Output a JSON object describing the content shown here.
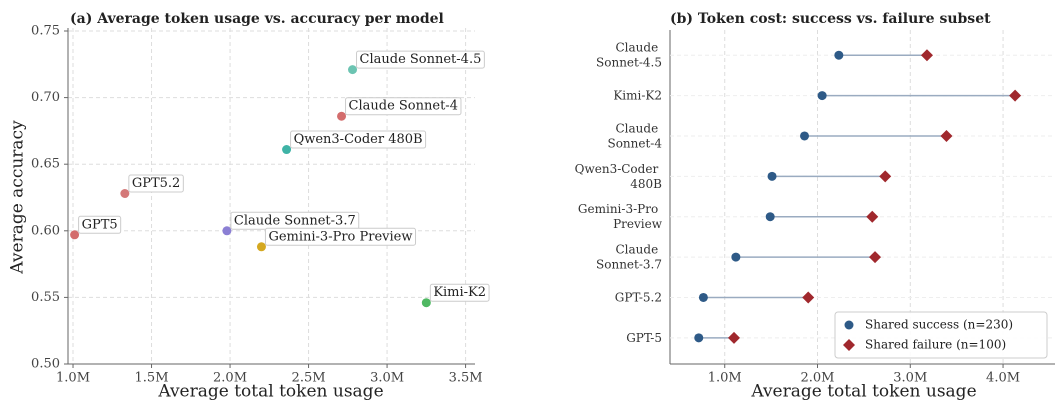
{
  "chart_data": [
    {
      "type": "scatter",
      "title": "(a) Average token usage vs. accuracy per model",
      "x_label": "Average total token usage",
      "y_label": "Average accuracy",
      "labels": [
        "GPT5",
        "GPT5.2",
        "Claude Sonnet-3.7",
        "Gemini-3-Pro Preview",
        "Qwen3-Coder 480B",
        "Claude Sonnet-4",
        "Claude Sonnet-4.5",
        "Kimi-K2"
      ],
      "x": [
        1010000,
        1330000,
        1980000,
        2200000,
        2360000,
        2710000,
        2780000,
        3250000
      ],
      "values": [
        0.597,
        0.628,
        0.6,
        0.588,
        0.661,
        0.686,
        0.721,
        0.546
      ],
      "colors": [
        "#d36d6d",
        "#d47878",
        "#8b7fd4",
        "#d4a820",
        "#3fb3a6",
        "#d36d6d",
        "#6cc4b2",
        "#4fb862"
      ],
      "xlim": [
        968000,
        3560000
      ],
      "ylim": [
        0.5,
        0.75
      ],
      "xticks": [
        {
          "value": 1000000,
          "label": "1.0M"
        },
        {
          "value": 1500000,
          "label": "1.5M"
        },
        {
          "value": 2000000,
          "label": "2.0M"
        },
        {
          "value": 2500000,
          "label": "2.5M"
        },
        {
          "value": 3000000,
          "label": "3.0M"
        },
        {
          "value": 3500000,
          "label": "3.5M"
        }
      ],
      "yticks": [
        {
          "value": 0.5,
          "label": "0.50"
        },
        0.55,
        {
          "value": 0.6,
          "label": "0.60"
        },
        0.65,
        {
          "value": 0.7,
          "label": "0.70"
        },
        0.75
      ],
      "grid": true
    },
    {
      "type": "dumbbell",
      "title": "(b) Token cost: success vs. failure subset",
      "x_label": "Average total token usage",
      "categories": [
        "Claude Sonnet-4.5",
        "Kimi-K2",
        "Claude Sonnet-4",
        "Qwen3-Coder 480B",
        "Gemini-3-Pro Preview",
        "Claude Sonnet-3.7",
        "GPT-5.2",
        "GPT-5"
      ],
      "series": [
        {
          "name": "Shared success (n=230)",
          "color": "#2e5a87",
          "values": [
            2230000,
            2050000,
            1860000,
            1510000,
            1490000,
            1120000,
            770000,
            720000
          ]
        },
        {
          "name": "Shared failure (n=100)",
          "color": "#a0282d",
          "values": [
            3180000,
            4130000,
            3390000,
            2730000,
            2590000,
            2620000,
            1900000,
            1100000
          ]
        }
      ],
      "xlim": [
        410000,
        4560000
      ],
      "xticks": [
        {
          "value": 1000000,
          "label": "1.0M"
        },
        {
          "value": 2000000,
          "label": "2.0M"
        },
        {
          "value": 3000000,
          "label": "3.0M"
        },
        {
          "value": 4000000,
          "label": "4.0M"
        }
      ],
      "grid": true,
      "legend": "lower right"
    }
  ]
}
